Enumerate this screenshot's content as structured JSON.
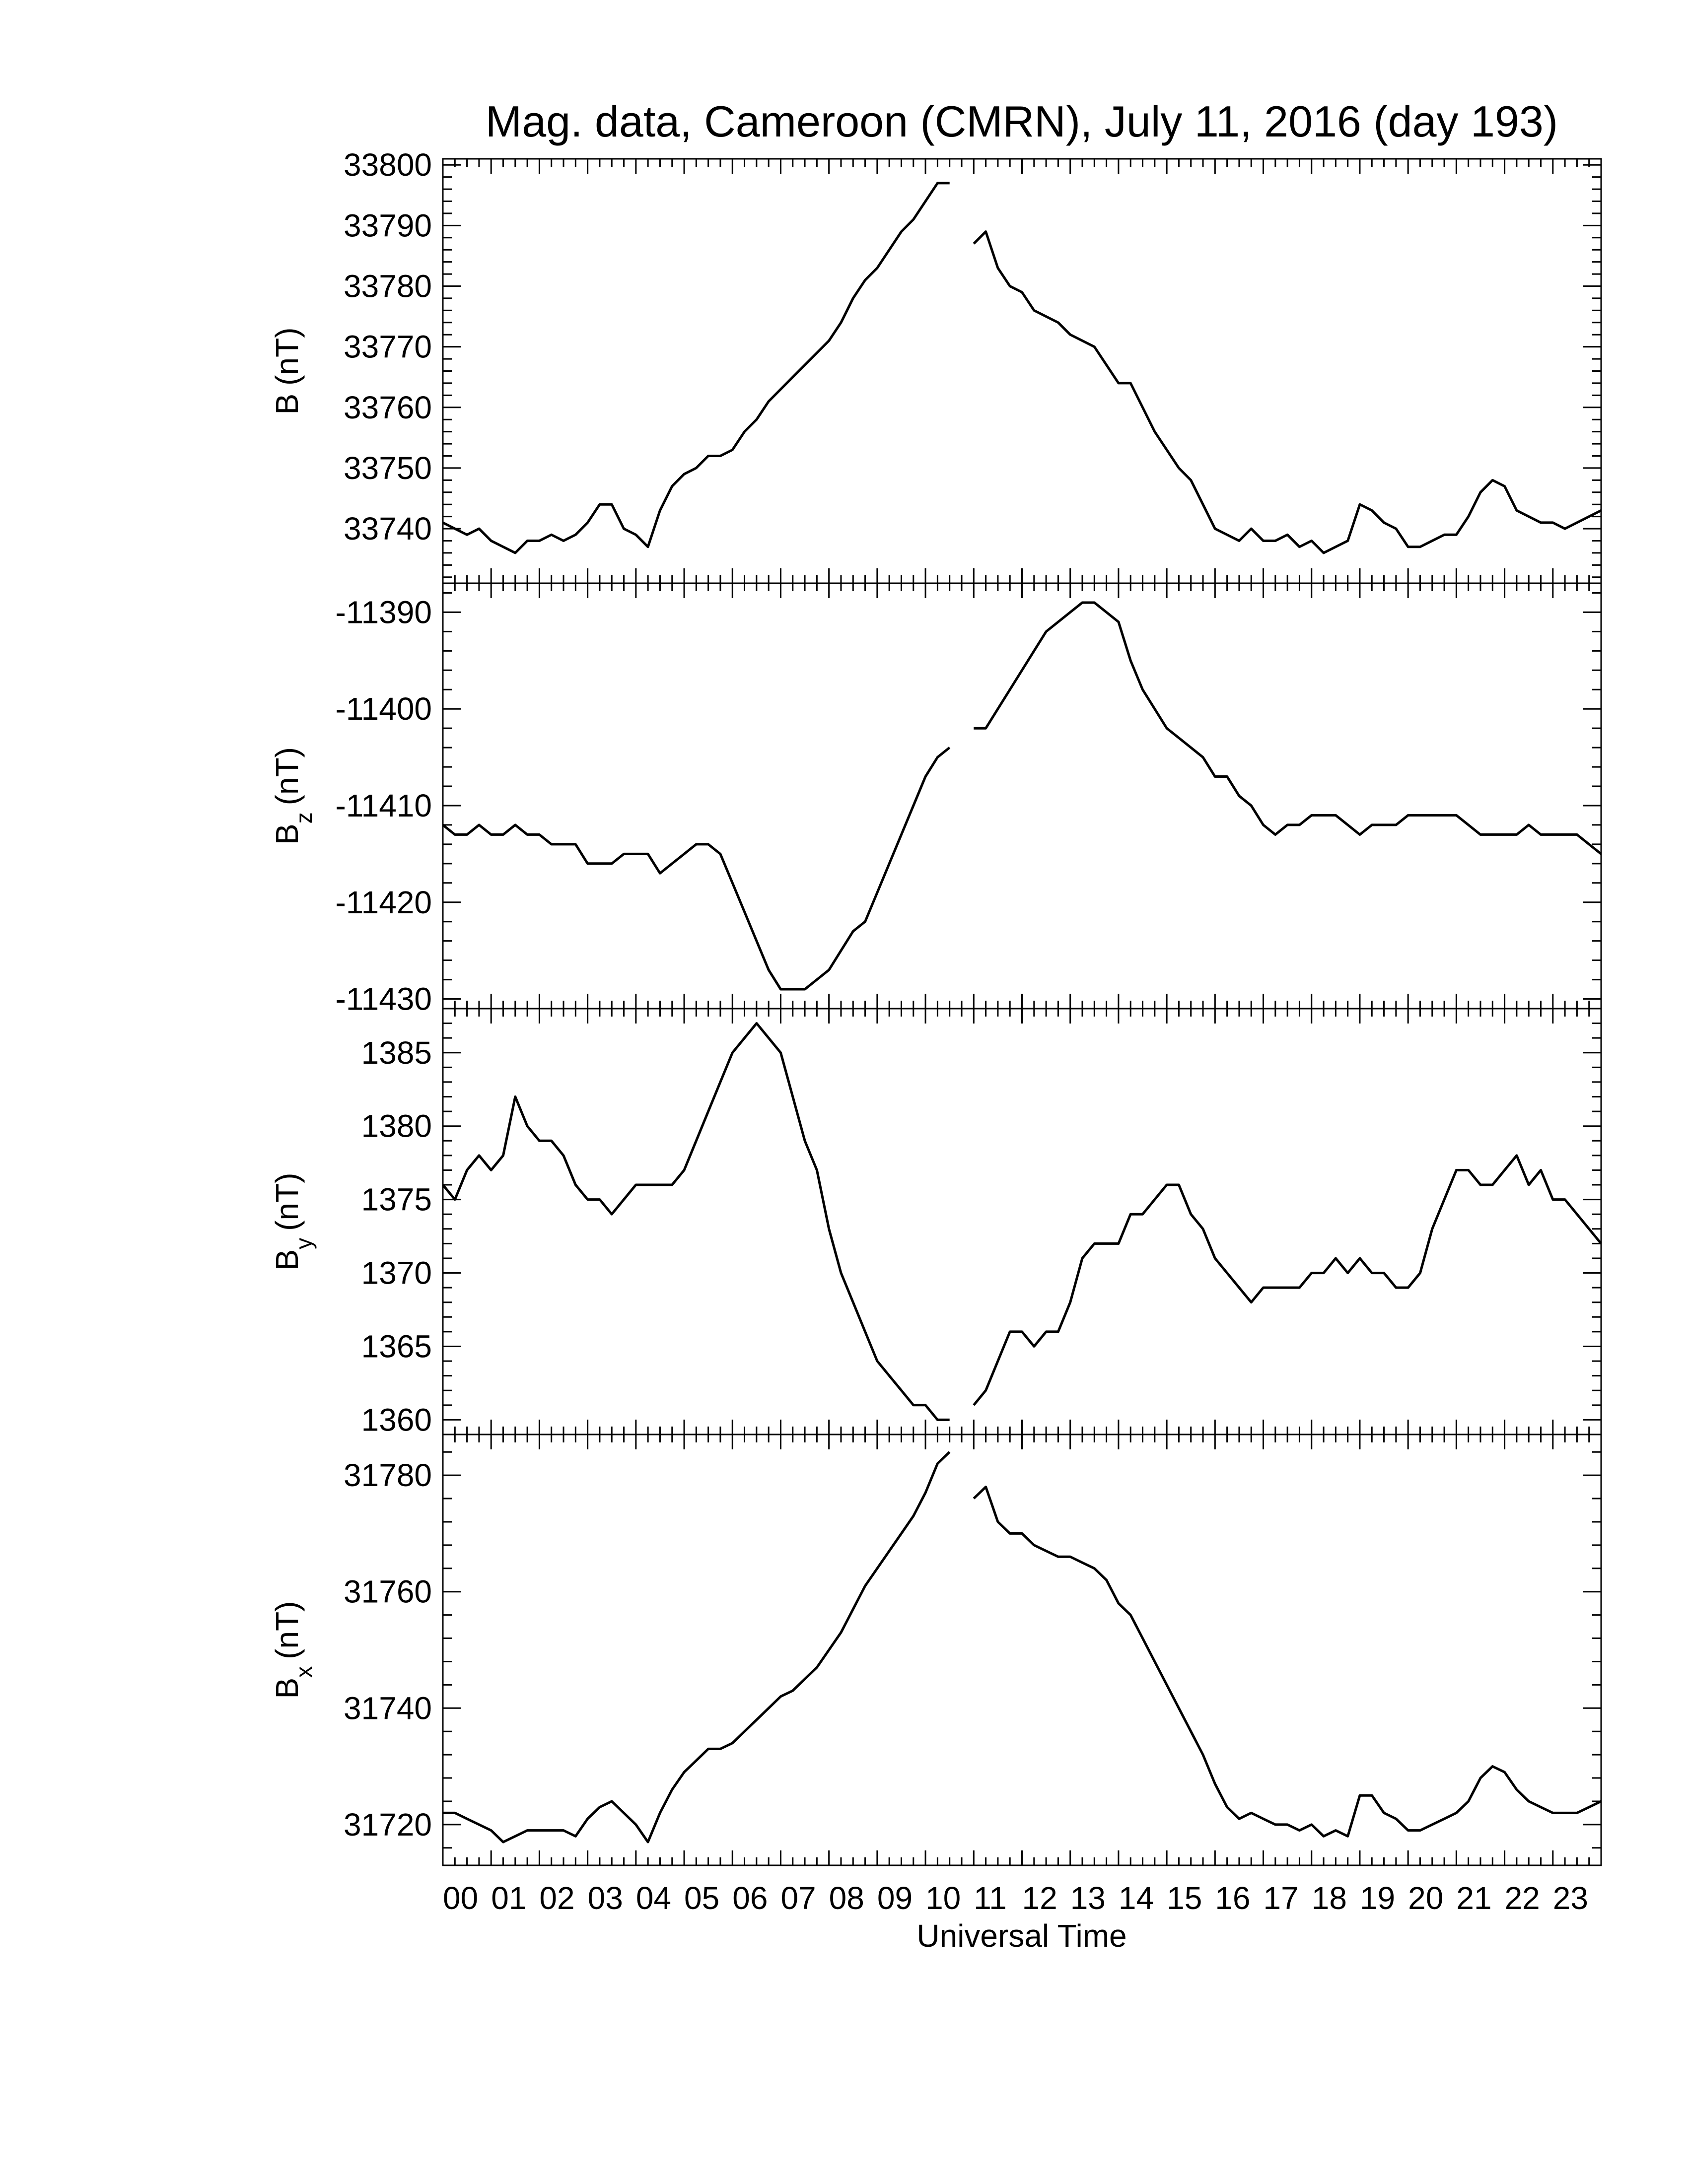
{
  "chart_data": {
    "type": "line",
    "title": "Mag. data, Cameroon (CMRN), July 11, 2016 (day 193)",
    "xlabel": "Universal Time",
    "xlim": [
      0,
      24
    ],
    "xticks": [
      "00",
      "01",
      "02",
      "03",
      "04",
      "05",
      "06",
      "07",
      "08",
      "09",
      "10",
      "11",
      "12",
      "13",
      "14",
      "15",
      "16",
      "17",
      "18",
      "19",
      "20",
      "21",
      "22",
      "23"
    ],
    "grid": false,
    "data_gap": [
      10.5,
      11.0
    ],
    "panels": [
      {
        "ylabel": "B",
        "ysub": "",
        "yunit": "(nT)",
        "ylim": [
          33731,
          33801
        ],
        "yticks": [
          33740,
          33750,
          33760,
          33770,
          33780,
          33790,
          33800
        ],
        "series": [
          {
            "x": [
              0.0,
              0.25,
              0.5,
              0.75,
              1.0,
              1.25,
              1.5,
              1.75,
              2.0,
              2.25,
              2.5,
              2.75,
              3.0,
              3.25,
              3.5,
              3.75,
              4.0,
              4.25,
              4.5,
              4.75,
              5.0,
              5.25,
              5.5,
              5.75,
              6.0,
              6.25,
              6.5,
              6.75,
              7.0,
              7.25,
              7.5,
              7.75,
              8.0,
              8.25,
              8.5,
              8.75,
              9.0,
              9.25,
              9.5,
              9.75,
              10.0,
              10.25,
              10.5,
              11.0,
              11.25,
              11.5,
              11.75,
              12.0,
              12.25,
              12.5,
              12.75,
              13.0,
              13.25,
              13.5,
              13.75,
              14.0,
              14.25,
              14.5,
              14.75,
              15.0,
              15.25,
              15.5,
              15.75,
              16.0,
              16.25,
              16.5,
              16.75,
              17.0,
              17.25,
              17.5,
              17.75,
              18.0,
              18.25,
              18.5,
              18.75,
              19.0,
              19.25,
              19.5,
              19.75,
              20.0,
              20.25,
              20.5,
              20.75,
              21.0,
              21.25,
              21.5,
              21.75,
              22.0,
              22.25,
              22.5,
              22.75,
              23.0,
              23.25,
              23.5,
              23.75,
              24.0
            ],
            "y": [
              33741,
              33740,
              33739,
              33740,
              33738,
              33737,
              33736,
              33738,
              33738,
              33739,
              33738,
              33739,
              33741,
              33744,
              33744,
              33740,
              33739,
              33737,
              33743,
              33747,
              33749,
              33750,
              33752,
              33752,
              33753,
              33756,
              33758,
              33761,
              33763,
              33765,
              33767,
              33769,
              33771,
              33774,
              33778,
              33781,
              33783,
              33786,
              33789,
              33791,
              33794,
              33797,
              33797,
              33787,
              33789,
              33783,
              33780,
              33779,
              33776,
              33775,
              33774,
              33772,
              33771,
              33770,
              33767,
              33764,
              33764,
              33760,
              33756,
              33753,
              33750,
              33748,
              33744,
              33740,
              33739,
              33738,
              33740,
              33738,
              33738,
              33739,
              33737,
              33738,
              33736,
              33737,
              33738,
              33744,
              33743,
              33741,
              33740,
              33737,
              33737,
              33738,
              33739,
              33739,
              33742,
              33746,
              33748,
              33747,
              33743,
              33742,
              33741,
              33741,
              33740,
              33741,
              33742,
              33743
            ]
          }
        ]
      },
      {
        "ylabel": "B",
        "ysub": "z",
        "yunit": "(nT)",
        "ylim": [
          -11431,
          -11387
        ],
        "yticks": [
          -11390,
          -11400,
          -11410,
          -11420,
          -11430
        ],
        "series": [
          {
            "x": [
              0.0,
              0.25,
              0.5,
              0.75,
              1.0,
              1.25,
              1.5,
              1.75,
              2.0,
              2.25,
              2.5,
              2.75,
              3.0,
              3.25,
              3.5,
              3.75,
              4.0,
              4.25,
              4.5,
              4.75,
              5.0,
              5.25,
              5.5,
              5.75,
              6.0,
              6.25,
              6.5,
              6.75,
              7.0,
              7.25,
              7.5,
              7.75,
              8.0,
              8.25,
              8.5,
              8.75,
              9.0,
              9.25,
              9.5,
              9.75,
              10.0,
              10.25,
              10.5,
              11.0,
              11.25,
              11.5,
              11.75,
              12.0,
              12.25,
              12.5,
              12.75,
              13.0,
              13.25,
              13.5,
              13.75,
              14.0,
              14.25,
              14.5,
              14.75,
              15.0,
              15.25,
              15.5,
              15.75,
              16.0,
              16.25,
              16.5,
              16.75,
              17.0,
              17.25,
              17.5,
              17.75,
              18.0,
              18.25,
              18.5,
              18.75,
              19.0,
              19.25,
              19.5,
              19.75,
              20.0,
              20.25,
              20.5,
              20.75,
              21.0,
              21.25,
              21.5,
              21.75,
              22.0,
              22.25,
              22.5,
              22.75,
              23.0,
              23.25,
              23.5,
              23.75,
              24.0
            ],
            "y": [
              -11412,
              -11413,
              -11413,
              -11412,
              -11413,
              -11413,
              -11412,
              -11413,
              -11413,
              -11414,
              -11414,
              -11414,
              -11416,
              -11416,
              -11416,
              -11415,
              -11415,
              -11415,
              -11417,
              -11416,
              -11415,
              -11414,
              -11414,
              -11415,
              -11418,
              -11421,
              -11424,
              -11427,
              -11429,
              -11429,
              -11429,
              -11428,
              -11427,
              -11425,
              -11423,
              -11422,
              -11419,
              -11416,
              -11413,
              -11410,
              -11407,
              -11405,
              -11404,
              -11402,
              -11402,
              -11400,
              -11398,
              -11396,
              -11394,
              -11392,
              -11391,
              -11390,
              -11389,
              -11389,
              -11390,
              -11391,
              -11395,
              -11398,
              -11400,
              -11402,
              -11403,
              -11404,
              -11405,
              -11407,
              -11407,
              -11409,
              -11410,
              -11412,
              -11413,
              -11412,
              -11412,
              -11411,
              -11411,
              -11411,
              -11412,
              -11413,
              -11412,
              -11412,
              -11412,
              -11411,
              -11411,
              -11411,
              -11411,
              -11411,
              -11412,
              -11413,
              -11413,
              -11413,
              -11413,
              -11412,
              -11413,
              -11413,
              -11413,
              -11413,
              -11414,
              -11415
            ]
          }
        ]
      },
      {
        "ylabel": "B",
        "ysub": "y",
        "yunit": "(nT)",
        "ylim": [
          1359,
          1388
        ],
        "yticks": [
          1360,
          1365,
          1370,
          1375,
          1380,
          1385
        ],
        "series": [
          {
            "x": [
              0.0,
              0.25,
              0.5,
              0.75,
              1.0,
              1.25,
              1.5,
              1.75,
              2.0,
              2.25,
              2.5,
              2.75,
              3.0,
              3.25,
              3.5,
              3.75,
              4.0,
              4.25,
              4.5,
              4.75,
              5.0,
              5.25,
              5.5,
              5.75,
              6.0,
              6.25,
              6.5,
              6.75,
              7.0,
              7.25,
              7.5,
              7.75,
              8.0,
              8.25,
              8.5,
              8.75,
              9.0,
              9.25,
              9.5,
              9.75,
              10.0,
              10.25,
              10.5,
              11.0,
              11.25,
              11.5,
              11.75,
              12.0,
              12.25,
              12.5,
              12.75,
              13.0,
              13.25,
              13.5,
              13.75,
              14.0,
              14.25,
              14.5,
              14.75,
              15.0,
              15.25,
              15.5,
              15.75,
              16.0,
              16.25,
              16.5,
              16.75,
              17.0,
              17.25,
              17.5,
              17.75,
              18.0,
              18.25,
              18.5,
              18.75,
              19.0,
              19.25,
              19.5,
              19.75,
              20.0,
              20.25,
              20.5,
              20.75,
              21.0,
              21.25,
              21.5,
              21.75,
              22.0,
              22.25,
              22.5,
              22.75,
              23.0,
              23.25,
              23.5,
              23.75,
              24.0
            ],
            "y": [
              1376,
              1375,
              1377,
              1378,
              1377,
              1378,
              1382,
              1380,
              1379,
              1379,
              1378,
              1376,
              1375,
              1375,
              1374,
              1375,
              1376,
              1376,
              1376,
              1376,
              1377,
              1379,
              1381,
              1383,
              1385,
              1386,
              1387,
              1386,
              1385,
              1382,
              1379,
              1377,
              1373,
              1370,
              1368,
              1366,
              1364,
              1363,
              1362,
              1361,
              1361,
              1360,
              1360,
              1361,
              1362,
              1364,
              1366,
              1366,
              1365,
              1366,
              1366,
              1368,
              1371,
              1372,
              1372,
              1372,
              1374,
              1374,
              1375,
              1376,
              1376,
              1374,
              1373,
              1371,
              1370,
              1369,
              1368,
              1369,
              1369,
              1369,
              1369,
              1370,
              1370,
              1371,
              1370,
              1371,
              1370,
              1370,
              1369,
              1369,
              1370,
              1373,
              1375,
              1377,
              1377,
              1376,
              1376,
              1377,
              1378,
              1376,
              1377,
              1375,
              1375,
              1374,
              1373,
              1372
            ]
          }
        ]
      },
      {
        "ylabel": "B",
        "ysub": "x",
        "yunit": "(nT)",
        "ylim": [
          31713,
          31787
        ],
        "yticks": [
          31720,
          31740,
          31760,
          31780
        ],
        "series": [
          {
            "x": [
              0.0,
              0.25,
              0.5,
              0.75,
              1.0,
              1.25,
              1.5,
              1.75,
              2.0,
              2.25,
              2.5,
              2.75,
              3.0,
              3.25,
              3.5,
              3.75,
              4.0,
              4.25,
              4.5,
              4.75,
              5.0,
              5.25,
              5.5,
              5.75,
              6.0,
              6.25,
              6.5,
              6.75,
              7.0,
              7.25,
              7.5,
              7.75,
              8.0,
              8.25,
              8.5,
              8.75,
              9.0,
              9.25,
              9.5,
              9.75,
              10.0,
              10.25,
              10.5,
              11.0,
              11.25,
              11.5,
              11.75,
              12.0,
              12.25,
              12.5,
              12.75,
              13.0,
              13.25,
              13.5,
              13.75,
              14.0,
              14.25,
              14.5,
              14.75,
              15.0,
              15.25,
              15.5,
              15.75,
              16.0,
              16.25,
              16.5,
              16.75,
              17.0,
              17.25,
              17.5,
              17.75,
              18.0,
              18.25,
              18.5,
              18.75,
              19.0,
              19.25,
              19.5,
              19.75,
              20.0,
              20.25,
              20.5,
              20.75,
              21.0,
              21.25,
              21.5,
              21.75,
              22.0,
              22.25,
              22.5,
              22.75,
              23.0,
              23.25,
              23.5,
              23.75,
              24.0
            ],
            "y": [
              31722,
              31722,
              31721,
              31720,
              31719,
              31717,
              31718,
              31719,
              31719,
              31719,
              31719,
              31718,
              31721,
              31723,
              31724,
              31722,
              31720,
              31717,
              31722,
              31726,
              31729,
              31731,
              31733,
              31733,
              31734,
              31736,
              31738,
              31740,
              31742,
              31743,
              31745,
              31747,
              31750,
              31753,
              31757,
              31761,
              31764,
              31767,
              31770,
              31773,
              31777,
              31782,
              31784,
              31776,
              31778,
              31772,
              31770,
              31770,
              31768,
              31767,
              31766,
              31766,
              31765,
              31764,
              31762,
              31758,
              31756,
              31752,
              31748,
              31744,
              31740,
              31736,
              31732,
              31727,
              31723,
              31721,
              31722,
              31721,
              31720,
              31720,
              31719,
              31720,
              31718,
              31719,
              31718,
              31725,
              31725,
              31722,
              31721,
              31719,
              31719,
              31720,
              31721,
              31722,
              31724,
              31728,
              31730,
              31729,
              31726,
              31724,
              31723,
              31722,
              31722,
              31722,
              31723,
              31724
            ]
          }
        ]
      }
    ]
  }
}
